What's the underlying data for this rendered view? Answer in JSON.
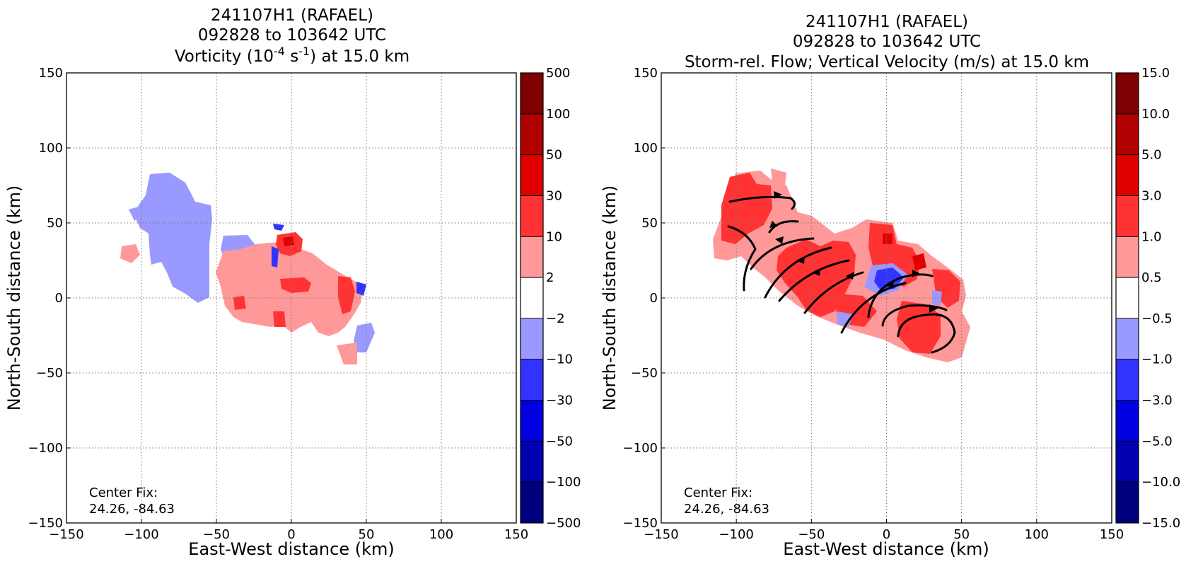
{
  "chart_data": [
    {
      "type": "heatmap",
      "title_line1": "241107H1 (RAFAEL)",
      "title_line2": "092828 to 103642 UTC",
      "title_line3_pre": "Vorticity (10",
      "title_line3_sup1": "-4",
      "title_line3_mid": " s",
      "title_line3_sup2": "-1",
      "title_line3_post": ") at 15.0 km",
      "xlabel": "East-West distance (km)",
      "ylabel": "North-South distance (km)",
      "xlim": [
        -150,
        150
      ],
      "ylim": [
        -150,
        150
      ],
      "x_ticks": [
        "−150",
        "−100",
        "−50",
        "0",
        "50",
        "100",
        "150"
      ],
      "y_ticks": [
        "150",
        "100",
        "50",
        "0",
        "−50",
        "−100",
        "−150"
      ],
      "grid": true,
      "colorbar_labels": [
        "500",
        "100",
        "50",
        "30",
        "10",
        "2",
        "−2",
        "−10",
        "−30",
        "−50",
        "−100",
        "−500"
      ],
      "colorbar_colors": [
        "#7f0000",
        "#b00000",
        "#e00000",
        "#ff3333",
        "#ff9999",
        "#ffffff",
        "#9999ff",
        "#3333ff",
        "#0000e0",
        "#0000b0",
        "#00007f"
      ],
      "annotation_line1": "Center Fix:",
      "annotation_line2": "24.26, -84.63"
    },
    {
      "type": "heatmap",
      "title_line1": "241107H1 (RAFAEL)",
      "title_line2": "092828 to 103642 UTC",
      "title_line3": "Storm-rel. Flow; Vertical Velocity (m/s) at 15.0 km",
      "xlabel": "East-West distance (km)",
      "ylabel": "North-South distance (km)",
      "xlim": [
        -150,
        150
      ],
      "ylim": [
        -150,
        150
      ],
      "x_ticks": [
        "−150",
        "−100",
        "−50",
        "0",
        "50",
        "100",
        "150"
      ],
      "y_ticks": [
        "150",
        "100",
        "50",
        "0",
        "−50",
        "−100",
        "−150"
      ],
      "grid": true,
      "colorbar_labels": [
        "15.0",
        "10.0",
        "5.0",
        "3.0",
        "1.0",
        "0.5",
        "−0.5",
        "−1.0",
        "−3.0",
        "−5.0",
        "−10.0",
        "−15.0"
      ],
      "colorbar_colors": [
        "#7f0000",
        "#b00000",
        "#e00000",
        "#ff3333",
        "#ff9999",
        "#ffffff",
        "#9999ff",
        "#3333ff",
        "#0000e0",
        "#0000b0",
        "#00007f"
      ],
      "annotation_line1": "Center Fix:",
      "annotation_line2": "24.26, -84.63"
    }
  ]
}
